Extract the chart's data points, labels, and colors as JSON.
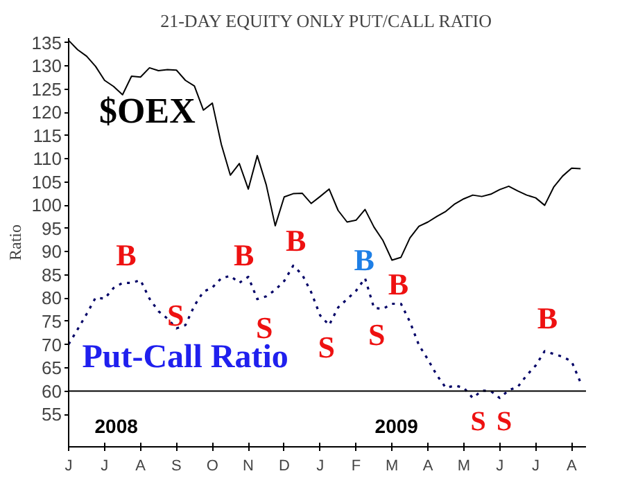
{
  "chart_data": {
    "type": "line",
    "title": "21-DAY EQUITY ONLY PUT/CALL RATIO",
    "ylabel": "Ratio",
    "categories": [
      "J",
      null,
      null,
      null,
      "J",
      null,
      null,
      null,
      "A",
      null,
      null,
      null,
      "S",
      null,
      null,
      null,
      "O",
      null,
      null,
      null,
      "N",
      null,
      null,
      null,
      "D",
      null,
      null,
      null,
      "J",
      null,
      null,
      null,
      "F",
      null,
      null,
      null,
      "M",
      null,
      null,
      null,
      "A",
      null,
      null,
      null,
      "M",
      null,
      null,
      null,
      "J",
      null,
      null,
      null,
      "J",
      null,
      null,
      null,
      "A",
      null
    ],
    "ylim": [
      48,
      136
    ],
    "yticks": [
      55,
      60,
      65,
      70,
      75,
      80,
      85,
      90,
      95,
      100,
      105,
      110,
      115,
      120,
      125,
      130,
      135
    ],
    "grid": false,
    "legend": false,
    "ref_lines": [
      {
        "axis": "y",
        "value": 60,
        "color": "#000000",
        "line_style": "solid"
      }
    ],
    "series": [
      {
        "name": "$OEX",
        "color": "#000000",
        "line_style": "solid",
        "values": [
          135.5,
          133.5,
          132.1,
          129.9,
          126.9,
          125.6,
          123.8,
          127.8,
          127.6,
          129.6,
          129.0,
          129.2,
          129.1,
          126.9,
          125.7,
          120.5,
          122.0,
          113.1,
          106.5,
          109.0,
          103.5,
          110.7,
          104.4,
          95.6,
          101.8,
          102.5,
          102.6,
          100.4,
          101.9,
          103.5,
          98.9,
          96.4,
          96.8,
          99.1,
          95.3,
          92.4,
          88.2,
          88.8,
          93.0,
          95.5,
          96.4,
          97.6,
          98.7,
          100.3,
          101.4,
          102.2,
          101.9,
          102.4,
          103.4,
          104.1,
          103.1,
          102.2,
          101.6,
          100.0,
          103.9,
          106.3,
          108.0,
          107.9
        ]
      },
      {
        "name": "Put-Call Ratio",
        "color": "#000066",
        "line_style": "dotted",
        "values": [
          70.1,
          73.3,
          76.6,
          80.1,
          79.9,
          82.2,
          83.3,
          83.3,
          83.9,
          79.9,
          77.2,
          75.6,
          73.5,
          74.2,
          78.4,
          81.4,
          82.3,
          84.3,
          84.8,
          83.3,
          84.6,
          79.8,
          80.4,
          81.8,
          83.7,
          87.0,
          85.1,
          81.3,
          76.3,
          74.2,
          78.0,
          79.8,
          81.6,
          84.3,
          77.9,
          77.7,
          78.8,
          78.8,
          74.9,
          69.9,
          66.8,
          63.4,
          60.7,
          61.2,
          60.7,
          58.5,
          60.1,
          60.0,
          58.5,
          60.2,
          60.9,
          63.4,
          65.5,
          68.6,
          68.0,
          67.4,
          66.4,
          61.8
        ]
      }
    ],
    "annotations": [
      "B",
      "S",
      "B",
      "S",
      "B",
      "S",
      "B",
      "S",
      "B",
      "B",
      "S",
      "S",
      "2008",
      "2009"
    ]
  }
}
